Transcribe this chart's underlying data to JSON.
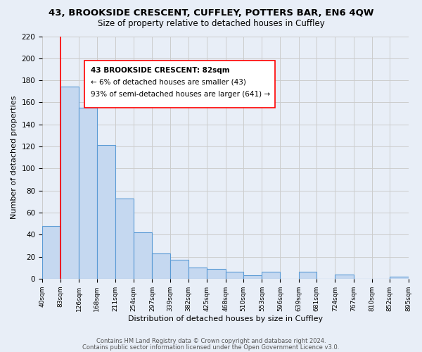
{
  "title1": "43, BROOKSIDE CRESCENT, CUFFLEY, POTTERS BAR, EN6 4QW",
  "title2": "Size of property relative to detached houses in Cuffley",
  "xlabel": "Distribution of detached houses by size in Cuffley",
  "ylabel": "Number of detached properties",
  "bar_edges": [
    40,
    83,
    126,
    168,
    211,
    254,
    297,
    339,
    382,
    425,
    468,
    510,
    553,
    596,
    639,
    681,
    724,
    767,
    810,
    852,
    895
  ],
  "bar_heights": [
    48,
    174,
    155,
    121,
    73,
    42,
    23,
    17,
    10,
    9,
    6,
    3,
    6,
    0,
    6,
    0,
    4,
    0,
    0,
    2
  ],
  "bar_color": "#c5d8f0",
  "bar_edge_color": "#5b9bd5",
  "bar_linewidth": 0.8,
  "grid_color": "#cccccc",
  "background_color": "#e8eef7",
  "red_line_x": 83,
  "annotation_text_line1": "43 BROOKSIDE CRESCENT: 82sqm",
  "annotation_text_line2": "← 6% of detached houses are smaller (43)",
  "annotation_text_line3": "93% of semi-detached houses are larger (641) →",
  "annotation_fontsize": 7.5,
  "title1_fontsize": 9.5,
  "title2_fontsize": 8.5,
  "xlabel_fontsize": 8,
  "ylabel_fontsize": 8,
  "tick_labels": [
    "40sqm",
    "83sqm",
    "126sqm",
    "168sqm",
    "211sqm",
    "254sqm",
    "297sqm",
    "339sqm",
    "382sqm",
    "425sqm",
    "468sqm",
    "510sqm",
    "553sqm",
    "596sqm",
    "639sqm",
    "681sqm",
    "724sqm",
    "767sqm",
    "810sqm",
    "852sqm",
    "895sqm"
  ],
  "ylim": [
    0,
    220
  ],
  "yticks": [
    0,
    20,
    40,
    60,
    80,
    100,
    120,
    140,
    160,
    180,
    200,
    220
  ],
  "footer1": "Contains HM Land Registry data © Crown copyright and database right 2024.",
  "footer2": "Contains public sector information licensed under the Open Government Licence v3.0."
}
